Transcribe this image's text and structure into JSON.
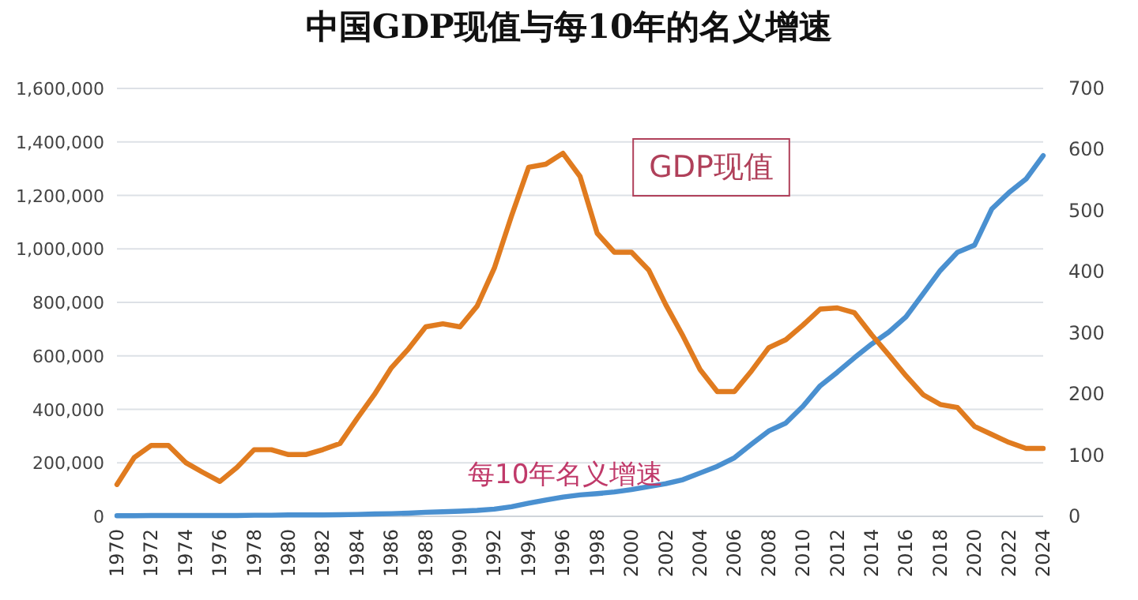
{
  "chart_data": {
    "type": "line",
    "title": "中国GDP现值与每10年的名义增速",
    "x": [
      1970,
      1971,
      1972,
      1973,
      1974,
      1975,
      1976,
      1977,
      1978,
      1979,
      1980,
      1981,
      1982,
      1983,
      1984,
      1985,
      1986,
      1987,
      1988,
      1989,
      1990,
      1991,
      1992,
      1993,
      1994,
      1995,
      1996,
      1997,
      1998,
      1999,
      2000,
      2001,
      2002,
      2003,
      2004,
      2005,
      2006,
      2007,
      2008,
      2009,
      2010,
      2011,
      2012,
      2013,
      2014,
      2015,
      2016,
      2017,
      2018,
      2019,
      2020,
      2021,
      2022,
      2023,
      2024
    ],
    "series": [
      {
        "color": "#4a90d0",
        "values": [
          2000,
          2000,
          3000,
          3000,
          3000,
          3000,
          3000,
          3000,
          4000,
          4000,
          5000,
          5000,
          5000,
          6000,
          7000,
          9000,
          10000,
          12000,
          15000,
          17000,
          19000,
          22000,
          27000,
          36000,
          49000,
          61000,
          72000,
          80000,
          85000,
          91000,
          100000,
          111000,
          122000,
          137000,
          162000,
          187000,
          219000,
          270000,
          319000,
          349000,
          412000,
          488000,
          539000,
          593000,
          644000,
          689000,
          746000,
          832000,
          919000,
          987000,
          1014000,
          1149000,
          1210000,
          1261000,
          1349000
        ]
      },
      {
        "color": "#e07b1f",
        "axis": "y2",
        "values": [
          52,
          96,
          116,
          116,
          88,
          72,
          57,
          80,
          109,
          109,
          101,
          101,
          109,
          119,
          160,
          199,
          243,
          274,
          310,
          315,
          310,
          344,
          406,
          491,
          571,
          576,
          594,
          556,
          463,
          432,
          432,
          403,
          346,
          295,
          240,
          204,
          204,
          238,
          276,
          289,
          313,
          339,
          341,
          333,
          297,
          264,
          230,
          199,
          183,
          178,
          147,
          134,
          121,
          111,
          111
        ]
      }
    ],
    "xlim": [
      1970,
      2024
    ],
    "xticks": [
      1970,
      1972,
      1974,
      1976,
      1978,
      1980,
      1982,
      1984,
      1986,
      1988,
      1990,
      1992,
      1994,
      1996,
      1998,
      2000,
      2002,
      2004,
      2006,
      2008,
      2010,
      2012,
      2014,
      2016,
      2018,
      2020,
      2022,
      2024
    ],
    "ylim": [
      0,
      1600000
    ],
    "yticks": [
      0,
      {
        "value": 200000,
        "label": "200,000"
      },
      {
        "value": 400000,
        "label": "400,000"
      },
      {
        "value": 600000,
        "label": "600,000"
      },
      {
        "value": 800000,
        "label": "800,000"
      },
      {
        "value": 1000000,
        "label": "1,000,000"
      },
      {
        "value": 1200000,
        "label": "1,200,000"
      },
      {
        "value": 1400000,
        "label": "1,400,000"
      },
      {
        "value": 1600000,
        "label": "1,600,000"
      }
    ],
    "y2lim": [
      0,
      700
    ],
    "y2ticks": [
      0,
      100,
      200,
      300,
      400,
      500,
      600,
      700
    ],
    "grid": "y",
    "line_style": "solid",
    "annotations": [
      "GDP现值",
      "每10年名义增速"
    ]
  }
}
